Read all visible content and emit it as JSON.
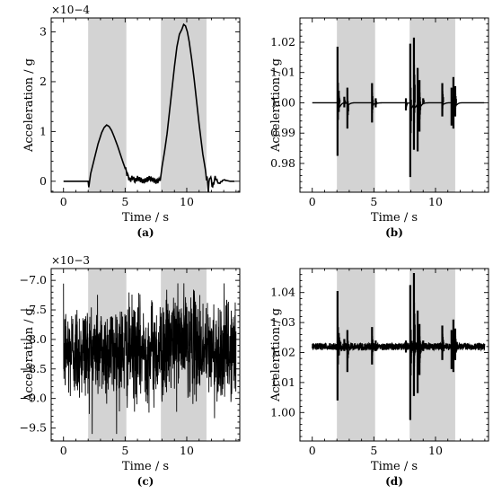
{
  "chart_data": [
    {
      "type": "line",
      "panel_label": "(a)",
      "xlabel": "Time / s",
      "ylabel": "Acceleration / g",
      "multiplier": "×10−4",
      "xlim": [
        -1,
        14.3
      ],
      "ylim": [
        -0.22,
        3.28
      ],
      "xticks": [
        {
          "v": 0,
          "label": "0"
        },
        {
          "v": 5,
          "label": "5"
        },
        {
          "v": 10,
          "label": "10"
        }
      ],
      "yticks": [
        {
          "v": 0,
          "label": "0"
        },
        {
          "v": 1,
          "label": "1"
        },
        {
          "v": 2,
          "label": "2"
        },
        {
          "v": 3,
          "label": "3"
        }
      ],
      "shaded_intervals": [
        [
          2.0,
          5.1
        ],
        [
          7.9,
          11.6
        ]
      ],
      "series": [
        {
          "x": [
            0,
            1.0,
            2.0,
            2.05,
            2.2,
            2.5,
            2.8,
            3.1,
            3.3,
            3.5,
            3.7,
            3.9,
            4.1,
            4.4,
            4.8,
            5.2,
            5.4,
            5.6,
            5.8,
            6.0,
            6.5,
            7.0,
            7.5,
            7.85,
            8.0,
            8.2,
            8.4,
            8.6,
            8.8,
            9.0,
            9.2,
            9.4,
            9.6,
            9.75,
            9.9,
            10.05,
            10.2,
            10.4,
            10.6,
            10.8,
            11.0,
            11.3,
            11.6,
            11.75,
            11.9,
            12.1,
            12.3,
            12.6,
            13.0,
            13.5,
            13.9
          ],
          "y": [
            0,
            0,
            0,
            -0.12,
            0.15,
            0.45,
            0.75,
            0.98,
            1.08,
            1.13,
            1.1,
            1.02,
            0.9,
            0.7,
            0.4,
            0.12,
            0.02,
            0.08,
            0.0,
            0.06,
            0.0,
            0.06,
            0.0,
            0.02,
            0.3,
            0.6,
            0.95,
            1.4,
            1.85,
            2.3,
            2.7,
            2.95,
            3.05,
            3.15,
            3.12,
            3.0,
            2.8,
            2.45,
            2.05,
            1.6,
            1.15,
            0.55,
            0.1,
            -0.15,
            0.12,
            -0.12,
            0.08,
            -0.05,
            0.03,
            0.0,
            0.0
          ]
        }
      ]
    },
    {
      "type": "line",
      "panel_label": "(b)",
      "xlabel": "Time / s",
      "ylabel": "Acceleration / g",
      "xlim": [
        -1,
        14.3
      ],
      "ylim": [
        0.9705,
        1.028
      ],
      "xticks": [
        {
          "v": 0,
          "label": "0"
        },
        {
          "v": 5,
          "label": "5"
        },
        {
          "v": 10,
          "label": "10"
        }
      ],
      "yticks": [
        {
          "v": 0.98,
          "label": "0.98"
        },
        {
          "v": 0.99,
          "label": "0.99"
        },
        {
          "v": 1.0,
          "label": "1.00"
        },
        {
          "v": 1.01,
          "label": "1.01"
        },
        {
          "v": 1.02,
          "label": "1.02"
        }
      ],
      "shaded_intervals": [
        [
          2.0,
          5.1
        ],
        [
          7.9,
          11.6
        ]
      ],
      "series": [
        {
          "baseline": 1.0,
          "spikes": [
            {
              "x": 2.05,
              "lo": 0.9825,
              "hi": 1.0185
            },
            {
              "x": 2.15,
              "lo": 0.997,
              "hi": 1.004
            },
            {
              "x": 2.6,
              "lo": 0.9985,
              "hi": 1.002
            },
            {
              "x": 2.85,
              "lo": 0.9915,
              "hi": 1.005
            },
            {
              "x": 4.85,
              "lo": 0.9935,
              "hi": 1.0065
            },
            {
              "x": 5.15,
              "lo": 0.9985,
              "hi": 1.0015
            },
            {
              "x": 7.6,
              "lo": 0.9975,
              "hi": 1.0015
            },
            {
              "x": 7.95,
              "lo": 0.9755,
              "hi": 1.0195
            },
            {
              "x": 8.25,
              "lo": 0.9845,
              "hi": 1.0215
            },
            {
              "x": 8.55,
              "lo": 0.984,
              "hi": 1.0115
            },
            {
              "x": 8.7,
              "lo": 0.9905,
              "hi": 1.0075
            },
            {
              "x": 9.0,
              "lo": 0.9995,
              "hi": 1.0015
            },
            {
              "x": 10.55,
              "lo": 0.9955,
              "hi": 1.0065
            },
            {
              "x": 11.3,
              "lo": 0.9925,
              "hi": 1.005
            },
            {
              "x": 11.45,
              "lo": 0.9915,
              "hi": 1.0085
            },
            {
              "x": 11.6,
              "lo": 0.9955,
              "hi": 1.0055
            }
          ]
        }
      ]
    },
    {
      "type": "line",
      "panel_label": "(c)",
      "xlabel": "Time / s",
      "ylabel": "Acceleration / g",
      "multiplier": "×10−3",
      "xlim": [
        -1,
        14.3
      ],
      "ylim": [
        -9.72,
        -6.8
      ],
      "xticks": [
        {
          "v": 0,
          "label": "0"
        },
        {
          "v": 5,
          "label": "5"
        },
        {
          "v": 10,
          "label": "10"
        }
      ],
      "yticks": [
        {
          "v": -9.5,
          "label": "−9.5"
        },
        {
          "v": -9.0,
          "label": "−9.0"
        },
        {
          "v": -8.5,
          "label": "−8.5"
        },
        {
          "v": -8.0,
          "label": "−8.0"
        },
        {
          "v": -7.5,
          "label": "−7.5"
        },
        {
          "v": -7.0,
          "label": "−7.0"
        }
      ],
      "shaded_intervals": [
        [
          2.0,
          5.1
        ],
        [
          7.9,
          11.6
        ]
      ],
      "series": [
        {
          "noise_band_center": -8.2,
          "noise_band_halfwidth": 0.75,
          "noise_envelope_min": -9.6,
          "noise_envelope_max": -7.05,
          "x_range": [
            0,
            14
          ]
        }
      ]
    },
    {
      "type": "line",
      "panel_label": "(d)",
      "xlabel": "Time / s",
      "ylabel": "Acceleration / g",
      "xlim": [
        -1,
        14.3
      ],
      "ylim": [
        0.9905,
        1.048
      ],
      "xticks": [
        {
          "v": 0,
          "label": "0"
        },
        {
          "v": 5,
          "label": "5"
        },
        {
          "v": 10,
          "label": "10"
        }
      ],
      "yticks": [
        {
          "v": 1.0,
          "label": "1.00"
        },
        {
          "v": 1.01,
          "label": "1.01"
        },
        {
          "v": 1.02,
          "label": "1.02"
        },
        {
          "v": 1.03,
          "label": "1.03"
        },
        {
          "v": 1.04,
          "label": "1.04"
        }
      ],
      "shaded_intervals": [
        [
          2.0,
          5.1
        ],
        [
          7.9,
          11.6
        ]
      ],
      "series": [
        {
          "baseline": 1.022,
          "baseline_noise": 0.0012,
          "spikes": [
            {
              "x": 2.05,
              "lo": 1.004,
              "hi": 1.0405
            },
            {
              "x": 2.15,
              "lo": 1.019,
              "hi": 1.0265
            },
            {
              "x": 2.6,
              "lo": 1.0205,
              "hi": 1.0245
            },
            {
              "x": 2.85,
              "lo": 1.0135,
              "hi": 1.0275
            },
            {
              "x": 4.85,
              "lo": 1.016,
              "hi": 1.0285
            },
            {
              "x": 5.15,
              "lo": 1.0205,
              "hi": 1.024
            },
            {
              "x": 7.6,
              "lo": 1.02,
              "hi": 1.024
            },
            {
              "x": 7.95,
              "lo": 0.9975,
              "hi": 1.0425
            },
            {
              "x": 8.25,
              "lo": 1.0055,
              "hi": 1.0465
            },
            {
              "x": 8.55,
              "lo": 1.0065,
              "hi": 1.034
            },
            {
              "x": 8.7,
              "lo": 1.0125,
              "hi": 1.0295
            },
            {
              "x": 9.0,
              "lo": 1.0205,
              "hi": 1.024
            },
            {
              "x": 10.55,
              "lo": 1.0175,
              "hi": 1.029
            },
            {
              "x": 11.3,
              "lo": 1.0145,
              "hi": 1.0275
            },
            {
              "x": 11.45,
              "lo": 1.0135,
              "hi": 1.031
            },
            {
              "x": 11.6,
              "lo": 1.0175,
              "hi": 1.028
            }
          ]
        }
      ]
    }
  ],
  "colors": {
    "shade": "#d3d3d3",
    "line": "#000000",
    "background": "#ffffff"
  }
}
